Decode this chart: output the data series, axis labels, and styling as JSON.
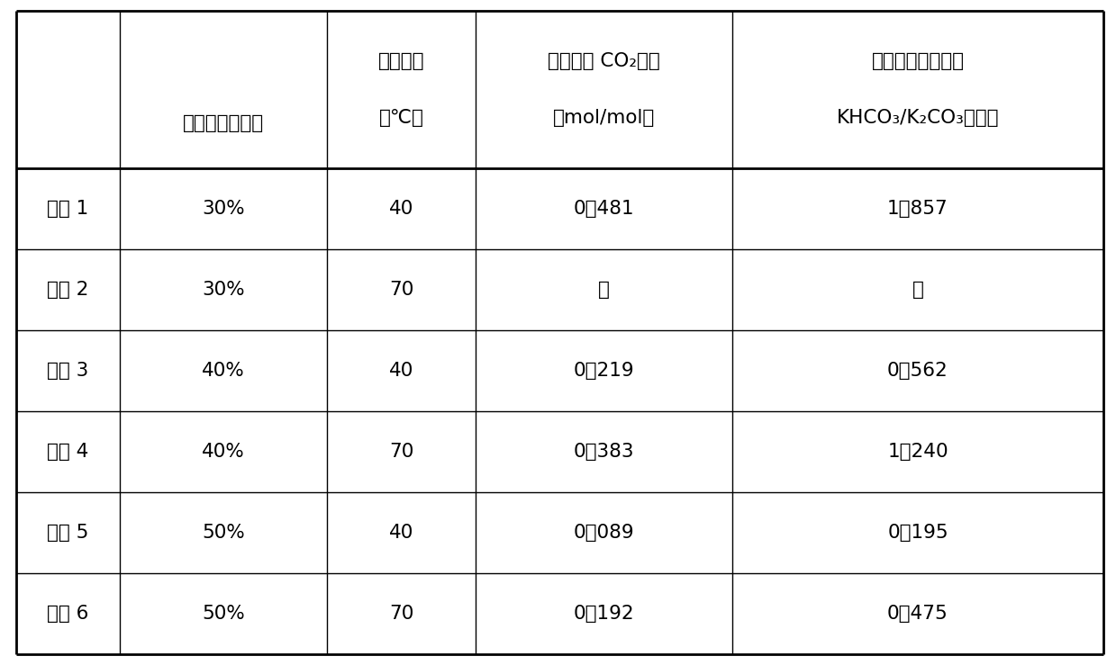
{
  "col_headers_line1": [
    "",
    "碳酸钾初始浓度",
    "反应温度",
    "结晶点处 CO₂负载",
    "结晶点处的溶液中"
  ],
  "col_headers_line2": [
    "",
    "",
    "（℃）",
    "（mol/mol）",
    "KHCO₃/K₂CO₃摩尔比"
  ],
  "rows": [
    [
      "实验 1",
      "30%",
      "40",
      "0．481",
      "1．857"
    ],
    [
      "实验 2",
      "30%",
      "70",
      "－",
      "－"
    ],
    [
      "实验 3",
      "40%",
      "40",
      "0．219",
      "0．562"
    ],
    [
      "实验 4",
      "40%",
      "70",
      "0．383",
      "1．240"
    ],
    [
      "实验 5",
      "50%",
      "40",
      "0．089",
      "0．195"
    ],
    [
      "实验 6",
      "50%",
      "70",
      "0．192",
      "0．475"
    ]
  ],
  "background_color": "#ffffff",
  "border_color": "#000000",
  "text_color": "#000000"
}
